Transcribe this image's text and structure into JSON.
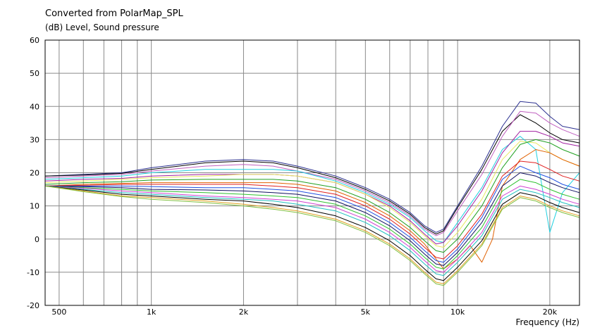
{
  "chart_data": {
    "type": "line",
    "title": "Converted from PolarMap_SPL",
    "ylabel": "(dB)  Level, Sound pressure",
    "xlabel": "Frequency  (Hz)",
    "xscale": "log",
    "xlim": [
      450,
      25000
    ],
    "ylim": [
      -20,
      60
    ],
    "yticks": [
      60,
      50,
      40,
      30,
      20,
      10,
      0,
      -10,
      -20
    ],
    "xtick_labels": [
      {
        "value": 500,
        "label": "500"
      },
      {
        "value": 1000,
        "label": "1k"
      },
      {
        "value": 2000,
        "label": "2k"
      },
      {
        "value": 5000,
        "label": "5k"
      },
      {
        "value": 10000,
        "label": "10k"
      },
      {
        "value": 20000,
        "label": "20k"
      }
    ],
    "grid": true,
    "series": [
      {
        "color": "#2a2f8f",
        "x": [
          450,
          600,
          800,
          1000,
          1500,
          2000,
          2500,
          3000,
          4000,
          5000,
          6000,
          7000,
          7800,
          8500,
          9000,
          10000,
          12000,
          14000,
          16000,
          18000,
          20000,
          22000,
          25000
        ],
        "y": [
          19,
          19.5,
          20,
          21.5,
          23.5,
          24,
          23.5,
          22,
          19,
          15.5,
          12,
          8,
          4,
          2,
          3,
          10,
          22,
          34,
          41.5,
          41,
          37,
          34,
          33
        ]
      },
      {
        "color": "#000000",
        "x": [
          450,
          600,
          800,
          1000,
          1500,
          2000,
          2500,
          3000,
          4000,
          5000,
          6000,
          7000,
          7800,
          8500,
          9000,
          10000,
          12000,
          14000,
          16000,
          18000,
          20000,
          22000,
          25000
        ],
        "y": [
          19,
          19.3,
          19.8,
          21,
          23,
          23.5,
          23,
          21.5,
          18.5,
          15,
          11.5,
          7.5,
          3.5,
          1.5,
          2.5,
          9.5,
          21,
          32.5,
          37.5,
          35,
          32,
          30,
          29
        ]
      },
      {
        "color": "#c060c0",
        "x": [
          450,
          600,
          800,
          1000,
          1500,
          2000,
          2500,
          3000,
          4000,
          5000,
          6000,
          7000,
          7800,
          8500,
          9000,
          10000,
          12000,
          14000,
          16000,
          18000,
          20000,
          22000,
          25000
        ],
        "y": [
          18.5,
          19,
          19.5,
          20.5,
          22,
          22.5,
          22,
          20.5,
          18,
          14.5,
          11,
          7,
          3,
          1,
          2,
          8.5,
          19.5,
          31,
          38.5,
          38,
          35,
          33,
          31
        ]
      },
      {
        "color": "#20d0e0",
        "x": [
          450,
          600,
          800,
          1000,
          1500,
          2000,
          2500,
          3000,
          4000,
          5000,
          6000,
          7000,
          7800,
          8500,
          9000,
          10000,
          12000,
          14000,
          16000,
          18000,
          19500,
          20000,
          22000,
          25000
        ],
        "y": [
          18,
          18.5,
          19,
          20,
          21,
          21,
          21,
          20.5,
          17.5,
          14,
          10.5,
          6.5,
          2.5,
          -0.5,
          -1,
          5,
          15.5,
          27,
          31,
          27,
          8,
          2,
          14,
          20
        ]
      },
      {
        "color": "#a020a0",
        "x": [
          450,
          600,
          800,
          1000,
          1500,
          2000,
          2500,
          3000,
          4000,
          5000,
          6000,
          7000,
          7800,
          8500,
          9000,
          10000,
          12000,
          14000,
          16000,
          18000,
          20000,
          22000,
          25000
        ],
        "y": [
          17.5,
          18,
          18.3,
          19,
          19.5,
          19.5,
          19.5,
          19,
          17,
          13.5,
          10,
          5.5,
          1.5,
          -1.5,
          -1,
          4,
          14.5,
          26,
          32.5,
          32.5,
          31,
          29,
          28
        ]
      },
      {
        "color": "#e8e860",
        "x": [
          450,
          600,
          800,
          1000,
          1500,
          2000,
          2500,
          3000,
          4000,
          5000,
          6000,
          7000,
          7800,
          8500,
          9000,
          10000,
          12000,
          14000,
          16000,
          18000,
          20000,
          22000,
          25000
        ],
        "y": [
          17,
          17.5,
          18,
          18.5,
          19,
          19.5,
          19.5,
          19,
          17,
          13.5,
          9.5,
          5,
          1,
          -2,
          -2.5,
          2,
          12,
          24,
          29.5,
          29,
          26,
          24,
          22
        ]
      },
      {
        "color": "#20a020",
        "x": [
          450,
          600,
          800,
          1000,
          1500,
          2000,
          2500,
          3000,
          4000,
          5000,
          6000,
          7000,
          7800,
          8500,
          9000,
          10000,
          12000,
          14000,
          16000,
          18000,
          20000,
          22000,
          25000
        ],
        "y": [
          16.5,
          17,
          17.3,
          17.8,
          18,
          18,
          18,
          17.5,
          15.5,
          12,
          8,
          3.5,
          -0.5,
          -3.5,
          -4,
          0,
          10,
          21.5,
          28.5,
          30,
          29,
          27,
          25
        ]
      },
      {
        "color": "#e06000",
        "x": [
          450,
          600,
          800,
          1000,
          1500,
          2000,
          2500,
          3000,
          4000,
          5000,
          6000,
          7000,
          7800,
          8500,
          9000,
          10000,
          11000,
          12000,
          13000,
          14000,
          16000,
          18000,
          20000,
          22000,
          25000
        ],
        "y": [
          16,
          16.5,
          16.8,
          17,
          17,
          17,
          17,
          16.5,
          14.5,
          11,
          7,
          2.5,
          -1.5,
          -6,
          -9,
          -6,
          -2,
          -7,
          0,
          16,
          24,
          27,
          26,
          24,
          22
        ]
      },
      {
        "color": "#e02020",
        "x": [
          450,
          600,
          800,
          1000,
          1500,
          2000,
          2500,
          3000,
          4000,
          5000,
          6000,
          7000,
          7800,
          8500,
          9000,
          10000,
          12000,
          14000,
          16000,
          18000,
          20000,
          22000,
          25000
        ],
        "y": [
          16,
          16.2,
          16.5,
          16.5,
          16.5,
          16.5,
          16,
          15.5,
          13.5,
          10,
          6,
          1.5,
          -2.5,
          -5.5,
          -6,
          -2,
          7.5,
          19,
          23.5,
          23,
          21,
          19,
          17.5
        ]
      },
      {
        "color": "#2050e0",
        "x": [
          450,
          600,
          800,
          1000,
          1500,
          2000,
          2500,
          3000,
          4000,
          5000,
          6000,
          7000,
          7800,
          8500,
          9000,
          10000,
          12000,
          14000,
          16000,
          18000,
          20000,
          22000,
          25000
        ],
        "y": [
          16,
          16,
          16,
          15.8,
          15.5,
          15.5,
          15,
          14.5,
          12.5,
          9,
          5,
          0.5,
          -3.5,
          -6.5,
          -7,
          -3,
          6.5,
          18,
          22,
          20,
          18.5,
          16.5,
          15
        ]
      },
      {
        "color": "#101060",
        "x": [
          450,
          600,
          800,
          1000,
          1500,
          2000,
          2500,
          3000,
          4000,
          5000,
          6000,
          7000,
          7800,
          8500,
          9000,
          10000,
          12000,
          14000,
          16000,
          18000,
          20000,
          22000,
          25000
        ],
        "y": [
          16,
          15.8,
          15.5,
          15,
          14.8,
          14.5,
          14,
          13.5,
          11.5,
          8,
          4,
          -0.5,
          -4.5,
          -7.5,
          -8,
          -4,
          5,
          16,
          20,
          19,
          17,
          15.5,
          14
        ]
      },
      {
        "color": "#30c030",
        "x": [
          450,
          600,
          800,
          1000,
          1500,
          2000,
          2500,
          3000,
          4000,
          5000,
          6000,
          7000,
          7800,
          8500,
          9000,
          10000,
          12000,
          14000,
          16000,
          18000,
          20000,
          22000,
          25000
        ],
        "y": [
          16,
          15.5,
          15,
          14.5,
          14,
          13.5,
          13,
          12.5,
          10.5,
          7,
          3,
          -1.5,
          -5.5,
          -8.5,
          -9,
          -5,
          3.5,
          14.5,
          18,
          17,
          15,
          13.5,
          12
        ]
      },
      {
        "color": "#d040d0",
        "x": [
          450,
          600,
          800,
          1000,
          1500,
          2000,
          2500,
          3000,
          4000,
          5000,
          6000,
          7000,
          7800,
          8500,
          9000,
          10000,
          12000,
          14000,
          16000,
          18000,
          20000,
          22000,
          25000
        ],
        "y": [
          16,
          15.3,
          14.5,
          14,
          13,
          12.5,
          12,
          11.5,
          9.5,
          6,
          2,
          -2.5,
          -6.5,
          -9.5,
          -10,
          -6,
          2,
          13,
          16,
          15,
          13.5,
          12,
          10.5
        ]
      },
      {
        "color": "#20c0c0",
        "x": [
          450,
          600,
          800,
          1000,
          1500,
          2000,
          2500,
          3000,
          4000,
          5000,
          6000,
          7000,
          7800,
          8500,
          9000,
          10000,
          12000,
          14000,
          16000,
          18000,
          20000,
          22000,
          25000
        ],
        "y": [
          16,
          15,
          14,
          13.5,
          12.5,
          12,
          11.5,
          10.5,
          8.5,
          5,
          1,
          -3.5,
          -7.5,
          -10.5,
          -11,
          -7,
          1,
          12,
          15,
          14,
          12.5,
          11,
          9.5
        ]
      },
      {
        "color": "#000000",
        "x": [
          450,
          600,
          800,
          1000,
          1500,
          2000,
          2500,
          3000,
          4000,
          5000,
          6000,
          7000,
          7800,
          8500,
          9000,
          10000,
          12000,
          14000,
          16000,
          18000,
          20000,
          22000,
          25000
        ],
        "y": [
          16,
          14.8,
          13.5,
          13,
          12,
          11.5,
          10.5,
          9.5,
          7,
          3.5,
          -0.5,
          -5,
          -9,
          -12,
          -12.5,
          -8.5,
          -0.5,
          10.5,
          14,
          13,
          11,
          9.5,
          8
        ]
      },
      {
        "color": "#e0a020",
        "x": [
          450,
          600,
          800,
          1000,
          1500,
          2000,
          2500,
          3000,
          4000,
          5000,
          6000,
          7000,
          7800,
          8500,
          9000,
          10000,
          12000,
          14000,
          16000,
          18000,
          20000,
          22000,
          25000
        ],
        "y": [
          16,
          14.5,
          13,
          12.5,
          11.5,
          10.5,
          9.5,
          8.5,
          6,
          2.5,
          -1.5,
          -6,
          -10,
          -13,
          -13.5,
          -9.5,
          -1.5,
          9.5,
          13,
          12,
          10,
          8.5,
          7
        ]
      },
      {
        "color": "#80c040",
        "x": [
          450,
          600,
          800,
          1000,
          1500,
          2000,
          2500,
          3000,
          4000,
          5000,
          6000,
          7000,
          7800,
          8500,
          9000,
          10000,
          12000,
          14000,
          16000,
          18000,
          20000,
          22000,
          25000
        ],
        "y": [
          16,
          14.3,
          12.8,
          12,
          11,
          10,
          9,
          8,
          5.5,
          2,
          -2,
          -6.5,
          -10.5,
          -13.5,
          -14,
          -10,
          -2,
          9,
          12.5,
          11.5,
          9.5,
          8,
          6.5
        ]
      }
    ]
  }
}
